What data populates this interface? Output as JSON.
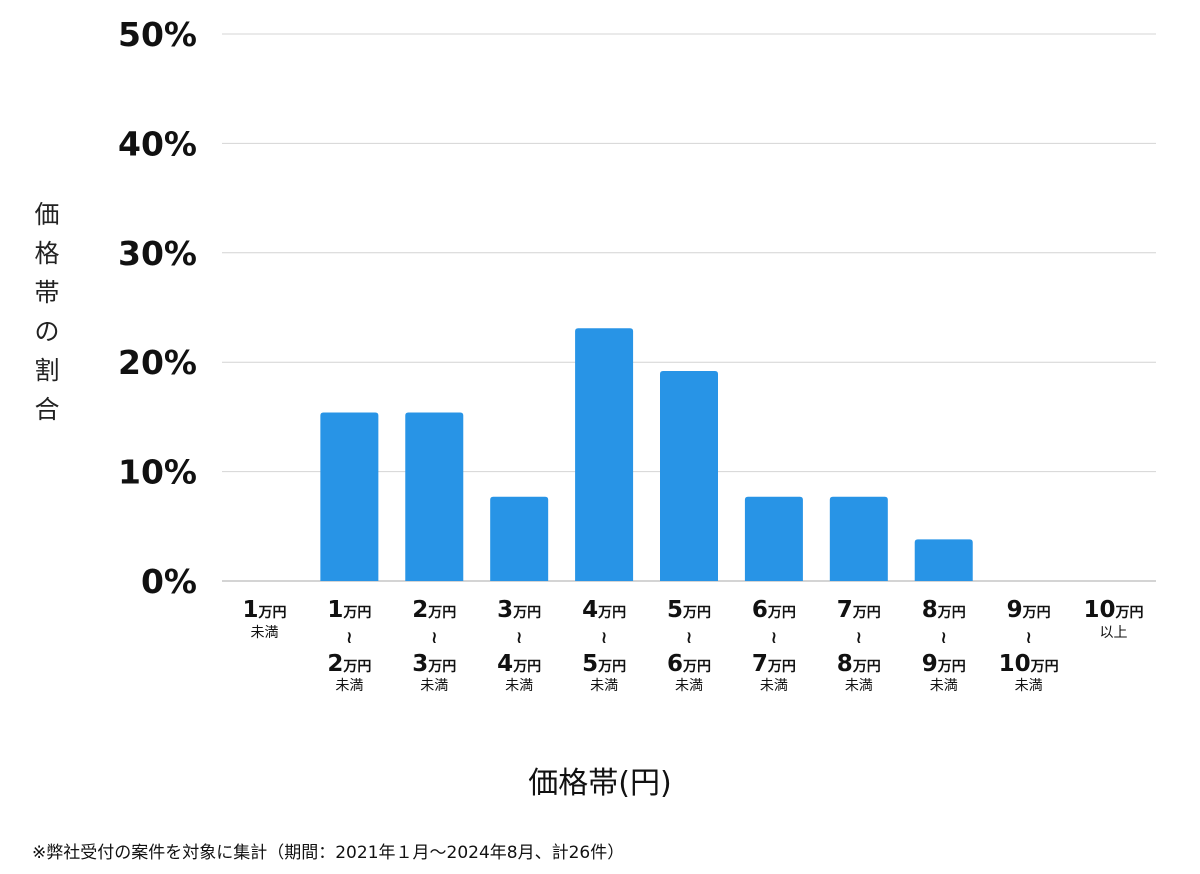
{
  "chart_data": {
    "type": "bar",
    "title": "",
    "xlabel": "価格帯(円)",
    "ylabel": "価格帯の割合",
    "ylim": [
      0,
      50
    ],
    "yticks": [
      {
        "value": 0,
        "label": "0%"
      },
      {
        "value": 10,
        "label": "10%"
      },
      {
        "value": 20,
        "label": "20%"
      },
      {
        "value": 30,
        "label": "30%"
      },
      {
        "value": 40,
        "label": "40%"
      },
      {
        "value": 50,
        "label": "50%"
      }
    ],
    "grid": true,
    "bar_color": "#2894e6",
    "categories": [
      {
        "from": "1",
        "to": "",
        "suffix": "未満",
        "unit": "万円",
        "separator": "≀"
      },
      {
        "from": "1",
        "to": "2",
        "suffix": "未満",
        "unit": "万円",
        "separator": "≀"
      },
      {
        "from": "2",
        "to": "3",
        "suffix": "未満",
        "unit": "万円",
        "separator": "≀"
      },
      {
        "from": "3",
        "to": "4",
        "suffix": "未満",
        "unit": "万円",
        "separator": "≀"
      },
      {
        "from": "4",
        "to": "5",
        "suffix": "未満",
        "unit": "万円",
        "separator": "≀"
      },
      {
        "from": "5",
        "to": "6",
        "suffix": "未満",
        "unit": "万円",
        "separator": "≀"
      },
      {
        "from": "6",
        "to": "7",
        "suffix": "未満",
        "unit": "万円",
        "separator": "≀"
      },
      {
        "from": "7",
        "to": "8",
        "suffix": "未満",
        "unit": "万円",
        "separator": "≀"
      },
      {
        "from": "8",
        "to": "9",
        "suffix": "未満",
        "unit": "万円",
        "separator": "≀"
      },
      {
        "from": "9",
        "to": "10",
        "suffix": "未満",
        "unit": "万円",
        "separator": "≀"
      },
      {
        "from": "10",
        "to": "",
        "suffix": "以上",
        "unit": "万円",
        "separator": "≀"
      }
    ],
    "values": [
      0,
      15.4,
      15.4,
      7.7,
      23.1,
      19.2,
      7.7,
      7.7,
      3.8,
      0,
      0
    ]
  },
  "footnote": "※弊社受付の案件を対象に集計（期間：2021年１月〜2024年8月、計26件）"
}
